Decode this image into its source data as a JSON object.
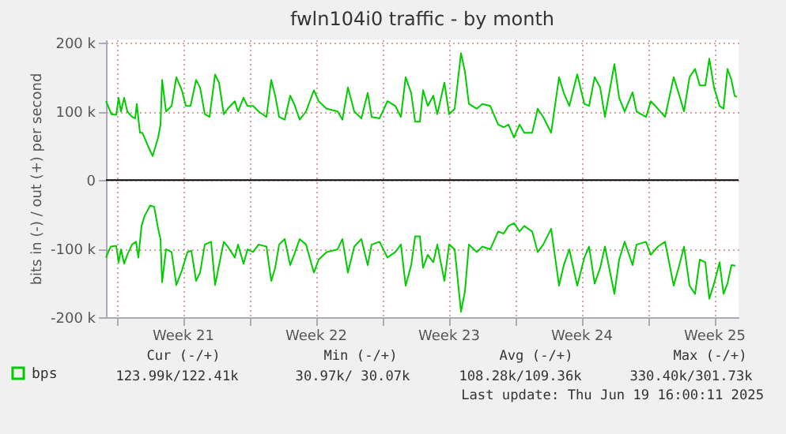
{
  "chart_data": {
    "type": "line",
    "title": "fwln104i0 traffic - by month",
    "ylabel": "bits in (-) / out (+) per second",
    "xlim": [
      "2025-05-18T11:00",
      "2025-06-20T19:00"
    ],
    "ylim": [
      -200,
      205
    ],
    "xticks": [
      {
        "value": "2025-05-19T00:00",
        "label": null
      },
      {
        "value": "2025-05-22T12:00",
        "label": "Week 21"
      },
      {
        "value": "2025-05-26T00:00",
        "label": null
      },
      {
        "value": "2025-05-29T12:00",
        "label": "Week 22"
      },
      {
        "value": "2025-06-02T00:00",
        "label": null
      },
      {
        "value": "2025-06-05T12:00",
        "label": "Week 23"
      },
      {
        "value": "2025-06-09T00:00",
        "label": null
      },
      {
        "value": "2025-06-12T12:00",
        "label": "Week 24"
      },
      {
        "value": "2025-06-16T00:00",
        "label": null
      },
      {
        "value": "2025-06-19T12:00",
        "label": "Week 25"
      }
    ],
    "yticks": [
      {
        "value": -200,
        "label": "-200 k"
      },
      {
        "value": -100,
        "label": "-100 k"
      },
      {
        "value": 0,
        "label": "0"
      },
      {
        "value": 100,
        "label": "100 k"
      },
      {
        "value": 200,
        "label": "200 k"
      }
    ],
    "grid": true,
    "legend": "bottom",
    "ref_lines": [
      {
        "axis": "y",
        "value": 0,
        "color": "#000000"
      }
    ],
    "series": [
      {
        "name": "bps",
        "color": "#00cc00",
        "x": [
          "2025-05-18T11:00",
          "2025-05-18T18:00",
          "2025-05-19T00:00",
          "2025-05-19T03:00",
          "2025-05-19T06:00",
          "2025-05-19T10:00",
          "2025-05-19T14:00",
          "2025-05-19T20:00",
          "2025-05-20T00:00",
          "2025-05-20T02:00",
          "2025-05-20T06:00",
          "2025-05-20T09:00",
          "2025-05-20T16:00",
          "2025-05-20T22:00",
          "2025-05-21T05:00",
          "2025-05-21T08:00",
          "2025-05-21T10:00",
          "2025-05-21T15:00",
          "2025-05-21T22:00",
          "2025-05-22T04:00",
          "2025-05-22T11:00",
          "2025-05-22T16:00",
          "2025-05-22T22:00",
          "2025-05-23T05:00",
          "2025-05-23T10:00",
          "2025-05-23T16:00",
          "2025-05-23T22:00",
          "2025-05-24T05:00",
          "2025-05-24T10:00",
          "2025-05-24T16:00",
          "2025-05-24T21:00",
          "2025-05-25T06:00",
          "2025-05-25T10:00",
          "2025-05-25T17:00",
          "2025-05-25T22:00",
          "2025-05-26T05:00",
          "2025-05-26T12:00",
          "2025-05-26T22:00",
          "2025-05-27T04:00",
          "2025-05-27T09:00",
          "2025-05-27T14:00",
          "2025-05-27T21:00",
          "2025-05-28T04:00",
          "2025-05-28T09:00",
          "2025-05-28T16:00",
          "2025-05-29T00:00",
          "2025-05-29T10:00",
          "2025-05-29T16:00",
          "2025-05-30T02:00",
          "2025-05-30T16:00",
          "2025-05-30T22:00",
          "2025-05-31T05:00",
          "2025-05-31T13:00",
          "2025-05-31T22:00",
          "2025-06-01T06:00",
          "2025-06-01T11:00",
          "2025-06-01T21:00",
          "2025-06-02T07:00",
          "2025-06-02T17:00",
          "2025-06-03T00:00",
          "2025-06-03T06:00",
          "2025-06-03T13:00",
          "2025-06-03T18:00",
          "2025-06-04T00:00",
          "2025-06-04T04:00",
          "2025-06-04T10:00",
          "2025-06-04T17:00",
          "2025-06-04T22:00",
          "2025-06-05T07:00",
          "2025-06-05T13:00",
          "2025-06-05T20:00",
          "2025-06-06T04:00",
          "2025-06-06T09:00",
          "2025-06-06T14:00",
          "2025-06-07T00:00",
          "2025-06-07T07:00",
          "2025-06-07T17:00",
          "2025-06-08T03:00",
          "2025-06-08T10:00",
          "2025-06-08T16:00",
          "2025-06-08T23:00",
          "2025-06-09T06:00",
          "2025-06-09T12:00",
          "2025-06-09T22:00",
          "2025-06-10T05:00",
          "2025-06-10T12:00",
          "2025-06-10T22:00",
          "2025-06-11T08:00",
          "2025-06-11T14:00",
          "2025-06-11T21:00",
          "2025-06-12T07:00",
          "2025-06-12T16:00",
          "2025-06-12T22:00",
          "2025-06-13T05:00",
          "2025-06-13T12:00",
          "2025-06-13T18:00",
          "2025-06-14T06:00",
          "2025-06-14T12:00",
          "2025-06-14T19:00",
          "2025-06-15T05:00",
          "2025-06-15T10:00",
          "2025-06-15T22:00",
          "2025-06-16T04:00",
          "2025-06-16T13:00",
          "2025-06-16T22:00",
          "2025-06-17T09:00",
          "2025-06-17T17:00",
          "2025-06-17T22:00",
          "2025-06-18T05:00",
          "2025-06-18T12:00",
          "2025-06-18T18:00",
          "2025-06-19T01:00",
          "2025-06-19T06:00",
          "2025-06-19T12:00",
          "2025-06-19T19:00",
          "2025-06-20T00:00",
          "2025-06-20T05:00",
          "2025-06-20T10:00",
          "2025-06-20T14:00",
          "2025-06-20T17:00"
        ],
        "values": [
          115,
          96,
          95,
          120,
          100,
          120,
          100,
          92,
          90,
          111,
          69,
          69,
          50,
          35,
          62,
          81,
          146,
          100,
          108,
          150,
          131,
          108,
          108,
          146,
          135,
          96,
          92,
          154,
          142,
          96,
          104,
          115,
          100,
          120,
          108,
          108,
          100,
          92,
          146,
          123,
          92,
          88,
          123,
          111,
          88,
          100,
          131,
          115,
          104,
          100,
          88,
          135,
          100,
          90,
          127,
          92,
          90,
          115,
          108,
          92,
          150,
          127,
          85,
          85,
          131,
          108,
          123,
          96,
          142,
          96,
          104,
          185,
          158,
          111,
          104,
          111,
          108,
          81,
          77,
          81,
          62,
          81,
          69,
          69,
          104,
          92,
          69,
          150,
          127,
          108,
          154,
          111,
          108,
          150,
          135,
          92,
          169,
          120,
          100,
          128,
          100,
          92,
          115,
          104,
          92,
          150,
          120,
          100,
          150,
          162,
          138,
          138,
          177,
          135,
          108,
          104,
          162,
          146,
          123,
          121
        ]
      },
      {
        "color": "#00cc00",
        "x": [
          "2025-05-18T11:00",
          "2025-05-18T17:00",
          "2025-05-19T00:00",
          "2025-05-19T03:00",
          "2025-05-19T06:00",
          "2025-05-19T10:00",
          "2025-05-19T14:00",
          "2025-05-19T20:00",
          "2025-05-20T01:00",
          "2025-05-20T04:00",
          "2025-05-20T08:00",
          "2025-05-20T12:00",
          "2025-05-20T19:00",
          "2025-05-21T00:00",
          "2025-05-21T05:00",
          "2025-05-21T08:00",
          "2025-05-21T10:00",
          "2025-05-21T15:00",
          "2025-05-21T22:00",
          "2025-05-22T04:00",
          "2025-05-22T11:00",
          "2025-05-22T18:00",
          "2025-05-22T23:00",
          "2025-05-23T05:00",
          "2025-05-23T10:00",
          "2025-05-23T16:00",
          "2025-05-24T00:00",
          "2025-05-24T05:00",
          "2025-05-24T10:00",
          "2025-05-24T16:00",
          "2025-05-24T21:00",
          "2025-05-25T06:00",
          "2025-05-25T10:00",
          "2025-05-25T17:00",
          "2025-05-25T22:00",
          "2025-05-26T05:00",
          "2025-05-26T12:00",
          "2025-05-26T22:00",
          "2025-05-27T04:00",
          "2025-05-27T09:00",
          "2025-05-27T14:00",
          "2025-05-27T21:00",
          "2025-05-28T04:00",
          "2025-05-28T09:00",
          "2025-05-28T16:00",
          "2025-05-29T00:00",
          "2025-05-29T10:00",
          "2025-05-29T16:00",
          "2025-05-30T02:00",
          "2025-05-30T16:00",
          "2025-05-30T22:00",
          "2025-05-31T05:00",
          "2025-05-31T13:00",
          "2025-05-31T22:00",
          "2025-06-01T06:00",
          "2025-06-01T11:00",
          "2025-06-01T21:00",
          "2025-06-02T07:00",
          "2025-06-02T17:00",
          "2025-06-03T00:00",
          "2025-06-03T06:00",
          "2025-06-03T13:00",
          "2025-06-03T18:00",
          "2025-06-04T00:00",
          "2025-06-04T04:00",
          "2025-06-04T10:00",
          "2025-06-04T17:00",
          "2025-06-04T22:00",
          "2025-06-05T07:00",
          "2025-06-05T13:00",
          "2025-06-05T20:00",
          "2025-06-06T04:00",
          "2025-06-06T09:00",
          "2025-06-06T14:00",
          "2025-06-07T00:00",
          "2025-06-07T07:00",
          "2025-06-07T17:00",
          "2025-06-08T03:00",
          "2025-06-08T10:00",
          "2025-06-08T16:00",
          "2025-06-08T23:00",
          "2025-06-09T06:00",
          "2025-06-09T12:00",
          "2025-06-09T22:00",
          "2025-06-10T05:00",
          "2025-06-10T12:00",
          "2025-06-10T22:00",
          "2025-06-11T08:00",
          "2025-06-11T14:00",
          "2025-06-11T21:00",
          "2025-06-12T07:00",
          "2025-06-12T16:00",
          "2025-06-12T22:00",
          "2025-06-13T05:00",
          "2025-06-13T12:00",
          "2025-06-13T18:00",
          "2025-06-14T06:00",
          "2025-06-14T12:00",
          "2025-06-14T19:00",
          "2025-06-15T05:00",
          "2025-06-15T10:00",
          "2025-06-15T22:00",
          "2025-06-16T04:00",
          "2025-06-16T13:00",
          "2025-06-16T22:00",
          "2025-06-17T09:00",
          "2025-06-17T17:00",
          "2025-06-17T22:00",
          "2025-06-18T05:00",
          "2025-06-18T12:00",
          "2025-06-18T18:00",
          "2025-06-19T01:00",
          "2025-06-19T06:00",
          "2025-06-19T12:00",
          "2025-06-19T19:00",
          "2025-06-20T00:00",
          "2025-06-20T05:00",
          "2025-06-20T10:00",
          "2025-06-20T15:00"
        ],
        "values": [
          -113,
          -97,
          -96,
          -120,
          -101,
          -122,
          -109,
          -94,
          -90,
          -113,
          -67,
          -52,
          -37,
          -39,
          -71,
          -86,
          -149,
          -101,
          -105,
          -153,
          -132,
          -105,
          -103,
          -147,
          -135,
          -94,
          -90,
          -153,
          -124,
          -90,
          -97,
          -113,
          -94,
          -122,
          -101,
          -105,
          -94,
          -97,
          -147,
          -128,
          -94,
          -86,
          -124,
          -109,
          -86,
          -94,
          -135,
          -116,
          -105,
          -101,
          -86,
          -135,
          -97,
          -86,
          -124,
          -94,
          -90,
          -113,
          -105,
          -94,
          -154,
          -124,
          -82,
          -82,
          -128,
          -109,
          -120,
          -94,
          -147,
          -94,
          -101,
          -192,
          -162,
          -94,
          -105,
          -97,
          -101,
          -75,
          -78,
          -67,
          -63,
          -75,
          -67,
          -75,
          -105,
          -94,
          -71,
          -154,
          -124,
          -101,
          -154,
          -113,
          -97,
          -151,
          -128,
          -97,
          -166,
          -116,
          -90,
          -124,
          -94,
          -90,
          -109,
          -97,
          -90,
          -154,
          -120,
          -97,
          -154,
          -166,
          -116,
          -120,
          -173,
          -151,
          -120,
          -166,
          -151,
          -124,
          -125
        ]
      }
    ],
    "annotations": [
      "Cur (-/+)",
      "Min (-/+)",
      "Avg (-/+)",
      "Max (-/+)",
      "123.99k/122.41k",
      "30.97k/ 30.07k",
      "108.28k/109.36k",
      "330.40k/301.73k",
      "Last update: Thu Jun 19 16:00:11 2025"
    ]
  }
}
